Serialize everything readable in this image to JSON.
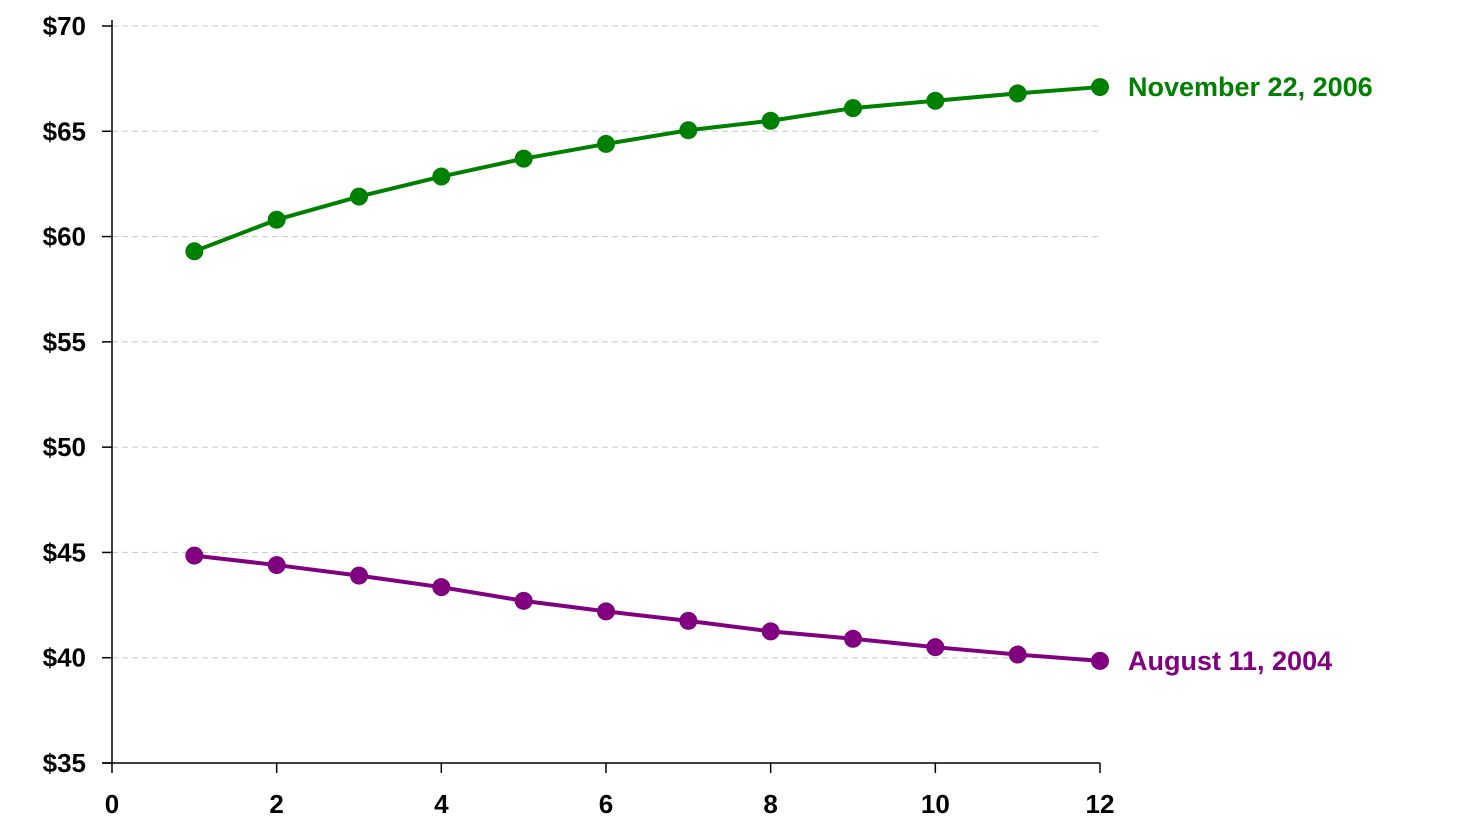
{
  "chart_data": {
    "type": "line",
    "title": "",
    "xlabel": "",
    "ylabel": "",
    "xlim": [
      0,
      12
    ],
    "ylim": [
      35,
      70
    ],
    "x_ticks": [
      0,
      2,
      4,
      6,
      8,
      10,
      12
    ],
    "x_tick_labels": [
      "0",
      "2",
      "4",
      "6",
      "8",
      "10",
      "12"
    ],
    "y_ticks": [
      35,
      40,
      45,
      50,
      55,
      60,
      65,
      70
    ],
    "y_tick_labels": [
      "$35",
      "$40",
      "$45",
      "$50",
      "$55",
      "$60",
      "$65",
      "$70"
    ],
    "grid": "horizontal dashed",
    "x": [
      1,
      2,
      3,
      4,
      5,
      6,
      7,
      8,
      9,
      10,
      11,
      12
    ],
    "series": [
      {
        "name": "November 22, 2006",
        "color": "#008000",
        "values": [
          59.3,
          60.8,
          61.9,
          62.85,
          63.7,
          64.4,
          65.05,
          65.5,
          66.1,
          66.45,
          66.8,
          67.1
        ]
      },
      {
        "name": "August 11, 2004",
        "color": "#800080",
        "values": [
          44.85,
          44.4,
          43.9,
          43.35,
          42.7,
          42.2,
          41.75,
          41.25,
          40.9,
          40.5,
          40.15,
          39.85
        ]
      }
    ]
  }
}
